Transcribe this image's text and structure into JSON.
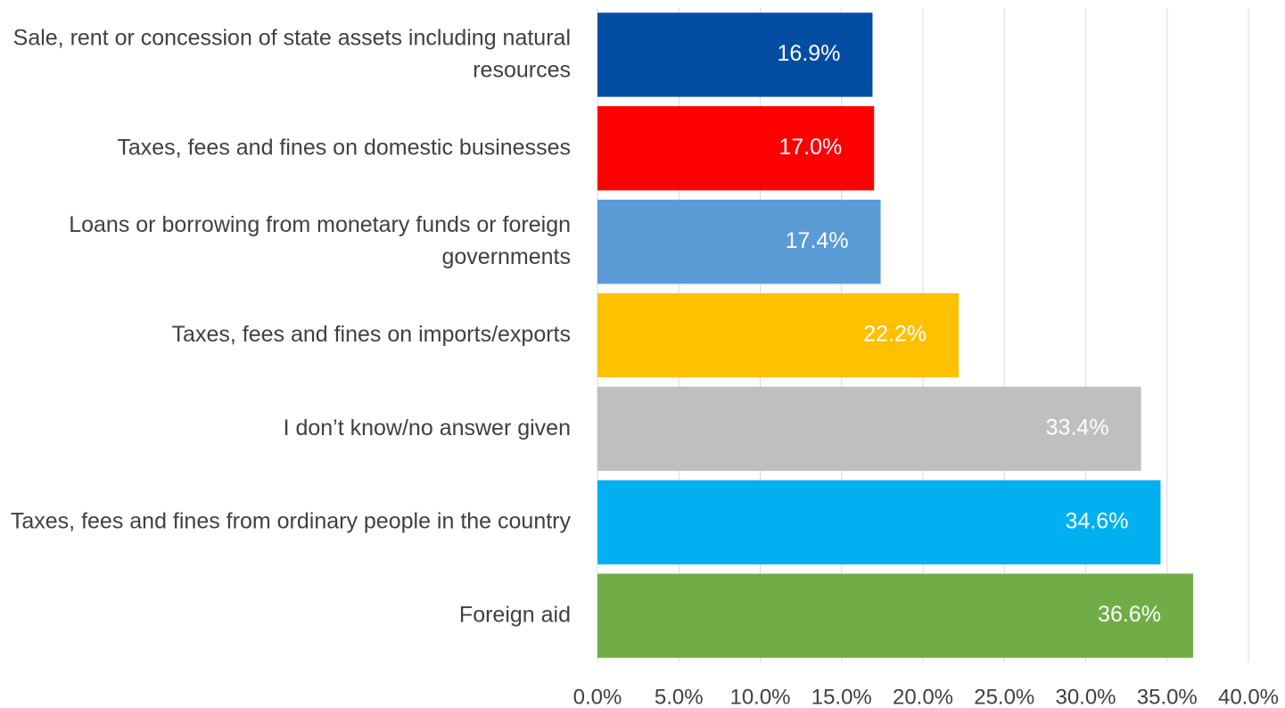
{
  "chart_data": {
    "type": "bar",
    "orientation": "horizontal",
    "categories": [
      "Sale, rent or concession of state assets including natural resources",
      "Taxes, fees and fines on domestic businesses",
      "Loans or borrowing from monetary funds or foreign governments",
      "Taxes, fees and fines on imports/exports",
      "I don’t know/no answer given",
      "Taxes, fees and fines from ordinary people in the country",
      "Foreign aid"
    ],
    "values": [
      16.9,
      17.0,
      17.4,
      22.2,
      33.4,
      34.6,
      36.6
    ],
    "value_labels": [
      "16.9%",
      "17.0%",
      "17.4%",
      "22.2%",
      "33.4%",
      "34.6%",
      "36.6%"
    ],
    "colors": [
      "#034ea2",
      "#ff0000",
      "#5b9bd5",
      "#ffc000",
      "#bfbfbf",
      "#00b0f0",
      "#70ad47"
    ],
    "xlim": [
      0,
      40
    ],
    "xticks": [
      {
        "value": 0,
        "label": "0.0%"
      },
      {
        "value": 5,
        "label": "5.0%"
      },
      {
        "value": 10,
        "label": "10.0%"
      },
      {
        "value": 15,
        "label": "15.0%"
      },
      {
        "value": 20,
        "label": "20.0%"
      },
      {
        "value": 25,
        "label": "25.0%"
      },
      {
        "value": 30,
        "label": "30.0%"
      },
      {
        "value": 35,
        "label": "35.0%"
      },
      {
        "value": 40,
        "label": "40.0%"
      }
    ],
    "grid": true
  }
}
